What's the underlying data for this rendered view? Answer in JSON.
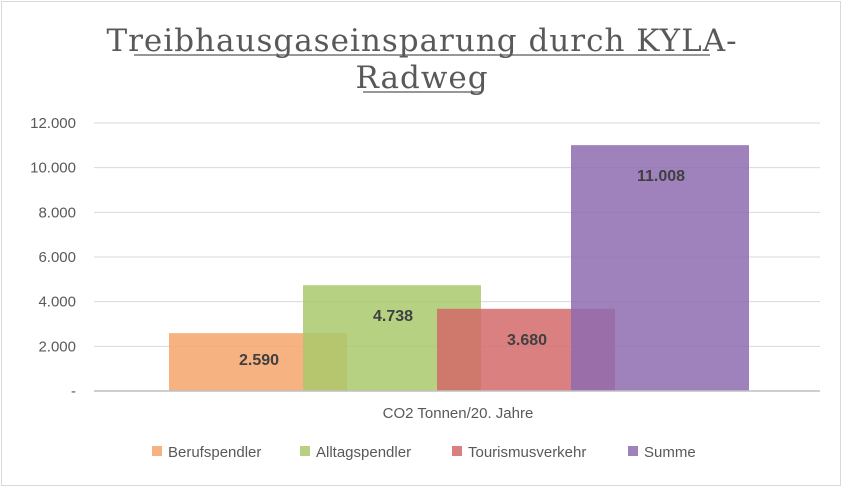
{
  "chart_data": {
    "type": "bar",
    "title": "Treibhausgaseinsparung durch KYLA-Radweg",
    "title_lines": [
      "Treibhausgaseinsparung  durch KYLA-",
      "Radweg"
    ],
    "categories": [
      "CO2 Tonnen/20. Jahre"
    ],
    "series": [
      {
        "name": "Berufspendler",
        "values": [
          2590
        ],
        "label": "2.590",
        "color": "#f4a46a"
      },
      {
        "name": "Alltagspendler",
        "values": [
          4738
        ],
        "label": "4.738",
        "color": "#a9c96b"
      },
      {
        "name": "Tourismusverkehr",
        "values": [
          3680
        ],
        "label": "3.680",
        "color": "#d46a6a"
      },
      {
        "name": "Summe",
        "values": [
          11008
        ],
        "label": "11.008",
        "color": "#8e6bb0"
      }
    ],
    "ylim": [
      0,
      12000
    ],
    "yticks": [
      0,
      2000,
      4000,
      6000,
      8000,
      10000,
      12000
    ],
    "ytick_labels": [
      "-",
      "2.000",
      "4.000",
      "6.000",
      "8.000",
      "10.000",
      "12.000"
    ],
    "xlabel": "",
    "ylabel": "",
    "grid": true,
    "legend_position": "bottom",
    "bar_opacity": 0.85
  }
}
